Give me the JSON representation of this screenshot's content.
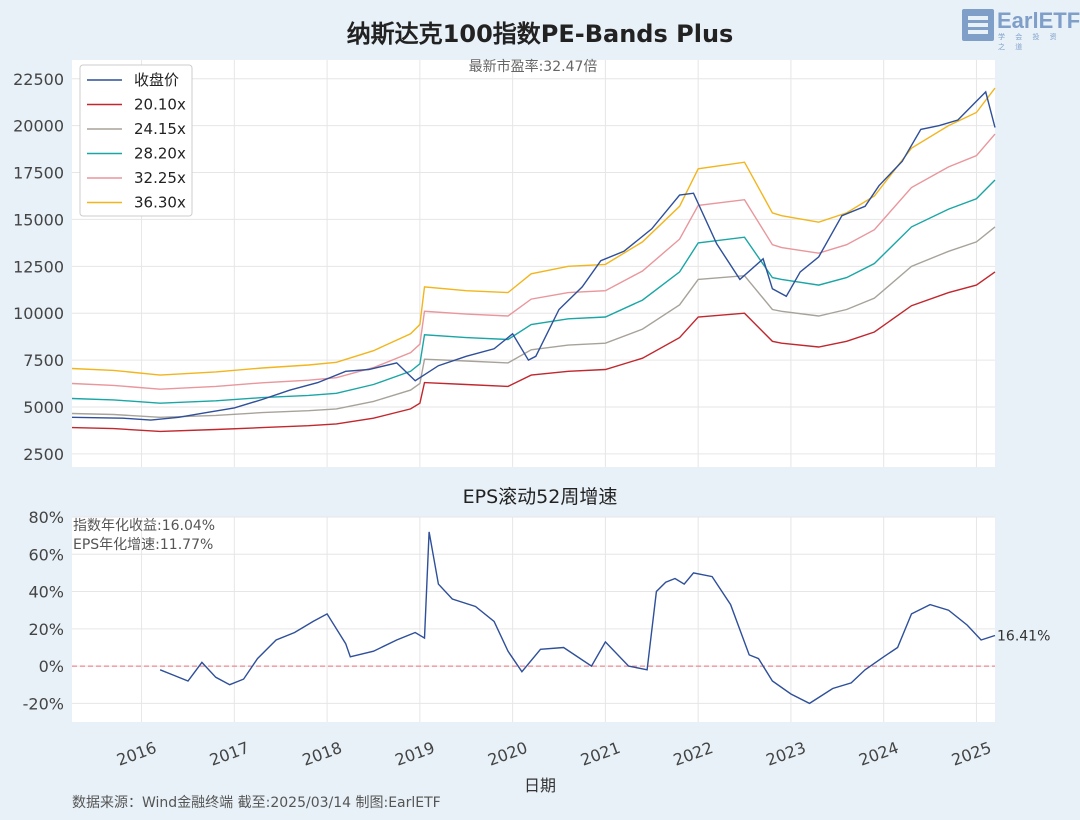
{
  "title": "纳斯达克100指数PE-Bands Plus",
  "subtitle": "EPS滚动52周增速",
  "logo": {
    "text": "EarlETF",
    "sub": "学 会 投 资 之 道"
  },
  "source": "数据来源：Wind金融终端 截至:2025/03/14 制图:EarlETF",
  "xlabel": "日期",
  "colors": {
    "background": "#e8f1f8",
    "price": "#2e4f9a",
    "b1": "#c1272d",
    "b2": "#a8a39a",
    "b3": "#1aa6a6",
    "b4": "#e9969c",
    "b5": "#f2b51c",
    "zero": "#ef6f7a"
  },
  "chart_data": [
    {
      "type": "line",
      "annotation": "最新市盈率:32.47倍",
      "x_ticks": [
        "2016",
        "2017",
        "2018",
        "2019",
        "2020",
        "2021",
        "2022",
        "2023",
        "2024",
        "2025"
      ],
      "y_ticks": [
        "2500",
        "5000",
        "7500",
        "10000",
        "12500",
        "15000",
        "17500",
        "20000",
        "22500"
      ],
      "ylim": [
        1800,
        23500
      ],
      "grid": true,
      "legend_position": "top-left",
      "series": [
        {
          "name": "收盘价",
          "x": [
            2015.25,
            2015.8,
            2016.1,
            2016.4,
            2016.7,
            2017.0,
            2017.3,
            2017.6,
            2017.9,
            2018.2,
            2018.45,
            2018.75,
            2018.95,
            2019.2,
            2019.5,
            2019.8,
            2020.0,
            2020.17,
            2020.25,
            2020.5,
            2020.75,
            2020.95,
            2021.2,
            2021.5,
            2021.8,
            2021.95,
            2022.2,
            2022.45,
            2022.7,
            2022.8,
            2022.95,
            2023.1,
            2023.3,
            2023.55,
            2023.8,
            2023.95,
            2024.2,
            2024.4,
            2024.6,
            2024.8,
            2025.0,
            2025.1,
            2025.2
          ],
          "values": [
            4450,
            4400,
            4300,
            4450,
            4700,
            4950,
            5400,
            5900,
            6300,
            6900,
            7000,
            7350,
            6400,
            7200,
            7700,
            8100,
            8900,
            7500,
            7700,
            10200,
            11400,
            12800,
            13300,
            14500,
            16300,
            16400,
            13700,
            11800,
            12900,
            11300,
            10900,
            12200,
            13000,
            15200,
            15700,
            16800,
            18100,
            19800,
            20000,
            20300,
            21300,
            21800,
            19900
          ]
        },
        {
          "name": "20.10x",
          "x": [
            2015.25,
            2015.7,
            2016.2,
            2016.8,
            2017.3,
            2017.8,
            2018.1,
            2018.5,
            2018.9,
            2019.0,
            2019.05,
            2019.5,
            2019.95,
            2020.2,
            2020.6,
            2021.0,
            2021.4,
            2021.8,
            2022.0,
            2022.5,
            2022.8,
            2022.9,
            2023.3,
            2023.6,
            2023.9,
            2024.3,
            2024.7,
            2025.0,
            2025.2
          ],
          "values": [
            3900,
            3850,
            3700,
            3800,
            3900,
            4000,
            4100,
            4400,
            4900,
            5200,
            6300,
            6200,
            6100,
            6700,
            6900,
            7000,
            7600,
            8700,
            9800,
            10000,
            8500,
            8400,
            8200,
            8500,
            9000,
            10400,
            11100,
            11500,
            12200
          ]
        },
        {
          "name": "24.15x",
          "x": [
            2015.25,
            2015.7,
            2016.2,
            2016.8,
            2017.3,
            2017.8,
            2018.1,
            2018.5,
            2018.9,
            2019.0,
            2019.05,
            2019.5,
            2019.95,
            2020.2,
            2020.6,
            2021.0,
            2021.4,
            2021.8,
            2022.0,
            2022.5,
            2022.8,
            2022.9,
            2023.3,
            2023.6,
            2023.9,
            2024.3,
            2024.7,
            2025.0,
            2025.2
          ],
          "values": [
            4650,
            4600,
            4450,
            4550,
            4700,
            4800,
            4900,
            5300,
            5900,
            6250,
            7550,
            7450,
            7350,
            8050,
            8300,
            8400,
            9150,
            10450,
            11800,
            12000,
            10200,
            10100,
            9850,
            10200,
            10800,
            12500,
            13300,
            13800,
            14600
          ]
        },
        {
          "name": "28.20x",
          "x": [
            2015.25,
            2015.7,
            2016.2,
            2016.8,
            2017.3,
            2017.8,
            2018.1,
            2018.5,
            2018.9,
            2019.0,
            2019.05,
            2019.5,
            2019.95,
            2020.2,
            2020.6,
            2021.0,
            2021.4,
            2021.8,
            2022.0,
            2022.5,
            2022.8,
            2022.9,
            2023.3,
            2023.6,
            2023.9,
            2024.3,
            2024.7,
            2025.0,
            2025.2
          ],
          "values": [
            5450,
            5380,
            5200,
            5330,
            5500,
            5620,
            5730,
            6200,
            6900,
            7300,
            8850,
            8700,
            8600,
            9400,
            9700,
            9800,
            10700,
            12200,
            13750,
            14050,
            11900,
            11800,
            11500,
            11900,
            12650,
            14600,
            15550,
            16100,
            17100
          ]
        },
        {
          "name": "32.25x",
          "x": [
            2015.25,
            2015.7,
            2016.2,
            2016.8,
            2017.3,
            2017.8,
            2018.1,
            2018.5,
            2018.9,
            2019.0,
            2019.05,
            2019.5,
            2019.95,
            2020.2,
            2020.6,
            2021.0,
            2021.4,
            2021.8,
            2022.0,
            2022.5,
            2022.8,
            2022.9,
            2023.3,
            2023.6,
            2023.9,
            2024.3,
            2024.7,
            2025.0,
            2025.2
          ],
          "values": [
            6250,
            6150,
            5950,
            6100,
            6290,
            6430,
            6560,
            7100,
            7900,
            8350,
            10100,
            9950,
            9850,
            10750,
            11100,
            11200,
            12250,
            13950,
            15750,
            16050,
            13650,
            13500,
            13200,
            13650,
            14450,
            16700,
            17800,
            18400,
            19550
          ]
        },
        {
          "name": "36.30x",
          "x": [
            2015.25,
            2015.7,
            2016.2,
            2016.8,
            2017.3,
            2017.8,
            2018.1,
            2018.5,
            2018.9,
            2019.0,
            2019.05,
            2019.5,
            2019.95,
            2020.2,
            2020.6,
            2021.0,
            2021.4,
            2021.8,
            2022.0,
            2022.5,
            2022.8,
            2022.9,
            2023.3,
            2023.6,
            2023.9,
            2024.3,
            2024.7,
            2025.0,
            2025.2
          ],
          "values": [
            7050,
            6950,
            6700,
            6870,
            7080,
            7240,
            7380,
            8000,
            8900,
            9400,
            11400,
            11200,
            11100,
            12100,
            12500,
            12600,
            13800,
            15700,
            17700,
            18050,
            15350,
            15200,
            14850,
            15350,
            16250,
            18800,
            20000,
            20700,
            22000
          ]
        }
      ]
    },
    {
      "type": "line",
      "title": "EPS滚动52周增速",
      "annotations": [
        "指数年化收益:16.04%",
        "EPS年化增速:11.77%"
      ],
      "end_label": "16.41%",
      "y_ticks": [
        "-20%",
        "0%",
        "20%",
        "40%",
        "60%",
        "80%"
      ],
      "ylim": [
        -30,
        80
      ],
      "reference_line": 0,
      "series": [
        {
          "name": "EPS滚动52周增速",
          "x": [
            2016.2,
            2016.35,
            2016.5,
            2016.65,
            2016.8,
            2016.95,
            2017.1,
            2017.25,
            2017.45,
            2017.65,
            2017.85,
            2018.0,
            2018.2,
            2018.25,
            2018.5,
            2018.75,
            2018.95,
            2019.05,
            2019.1,
            2019.2,
            2019.35,
            2019.6,
            2019.8,
            2019.95,
            2020.1,
            2020.3,
            2020.55,
            2020.85,
            2021.0,
            2021.25,
            2021.45,
            2021.55,
            2021.65,
            2021.75,
            2021.85,
            2021.95,
            2022.15,
            2022.35,
            2022.55,
            2022.65,
            2022.8,
            2023.0,
            2023.2,
            2023.45,
            2023.65,
            2023.8,
            2024.0,
            2024.15,
            2024.3,
            2024.5,
            2024.7,
            2024.9,
            2025.05,
            2025.2
          ],
          "values": [
            -2,
            -5,
            -8,
            2,
            -6,
            -10,
            -7,
            4,
            14,
            18,
            24,
            28,
            12,
            5,
            8,
            14,
            18,
            15,
            72,
            44,
            36,
            32,
            24,
            8,
            -3,
            9,
            10,
            0,
            13,
            0,
            -2,
            40,
            45,
            47,
            44,
            50,
            48,
            33,
            6,
            4,
            -8,
            -15,
            -20,
            -12,
            -9,
            -2,
            5,
            10,
            28,
            33,
            30,
            22,
            14,
            16.41
          ]
        }
      ]
    }
  ]
}
